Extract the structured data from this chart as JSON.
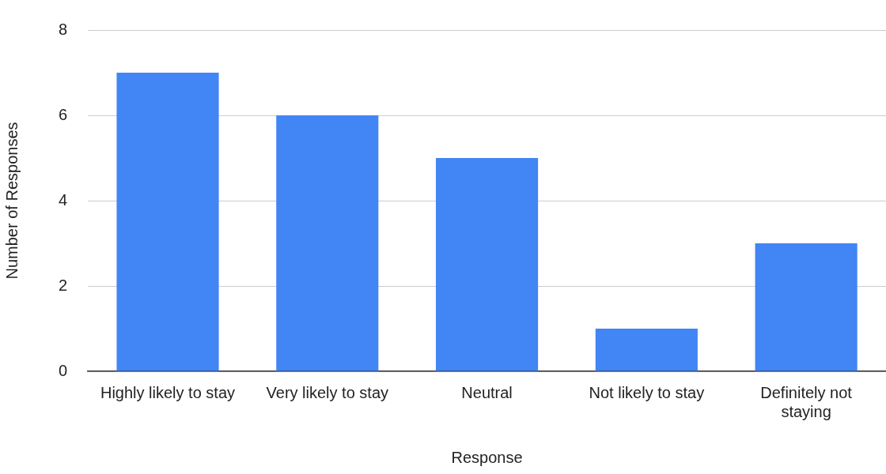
{
  "chart_data": {
    "type": "bar",
    "xlabel": "Response",
    "ylabel": "Number of Responses",
    "categories": [
      "Highly likely to stay",
      "Very likely to stay",
      "Neutral",
      "Not likely to stay",
      "Definitely not staying"
    ],
    "values": [
      7,
      6,
      5,
      1,
      3
    ],
    "color": "#4285f4",
    "ylim": [
      0,
      8
    ],
    "yticks": [
      0,
      2,
      4,
      6,
      8
    ],
    "grid": "y",
    "legend": false
  }
}
